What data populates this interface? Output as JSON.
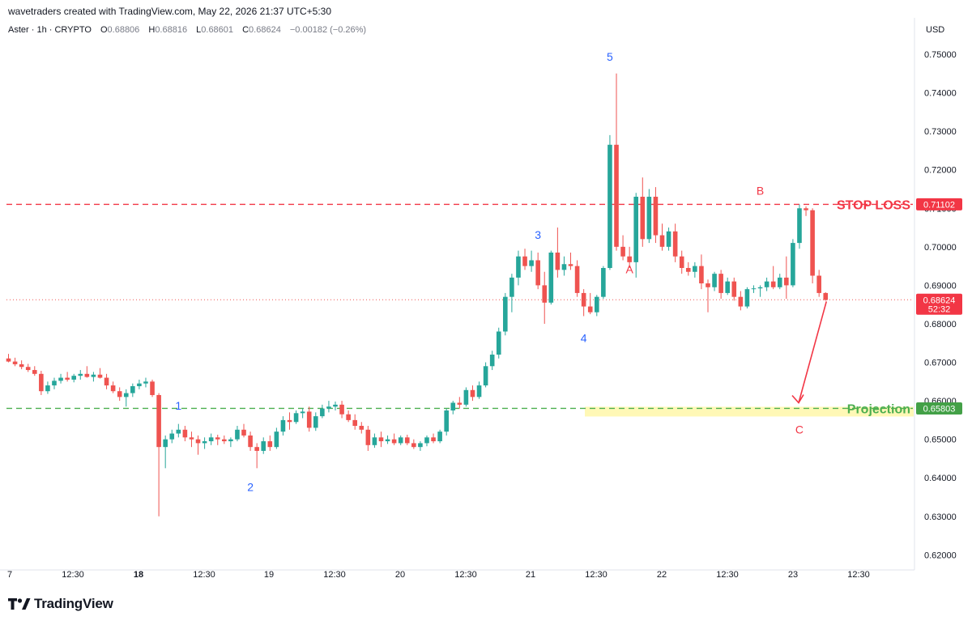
{
  "header": {
    "credit": "wavetraders created with TradingView.com, May 22, 2026 21:37 UTC+5:30",
    "symbol": "Aster · 1h · CRYPTO",
    "ohlc": {
      "o_label": "O",
      "o": "0.68806",
      "h_label": "H",
      "h": "0.68816",
      "l_label": "L",
      "l": "0.68601",
      "c_label": "C",
      "c": "0.68624",
      "change": "−0.00182 (−0.26%)"
    },
    "currency": "USD"
  },
  "brand": {
    "name": "TradingView",
    "logo": "tradingview-logo-icon"
  },
  "colors": {
    "up": "#26a69a",
    "down": "#ef5350",
    "stop": "#f23645",
    "projection": "#4caf50",
    "wave_blue": "#2962ff",
    "wave_red": "#f23645",
    "highlight": "#fff59d"
  },
  "chart_data": {
    "type": "candlestick",
    "ylim": [
      0.62,
      0.75
    ],
    "y_ticks": [
      "0.75000",
      "0.74000",
      "0.73000",
      "0.72000",
      "0.71000",
      "0.70000",
      "0.69000",
      "0.68000",
      "0.67000",
      "0.66000",
      "0.65000",
      "0.64000",
      "0.63000",
      "0.62000"
    ],
    "x_ticks": [
      "7",
      "12:30",
      "18",
      "12:30",
      "19",
      "12:30",
      "20",
      "12:30",
      "21",
      "12:30",
      "22",
      "12:30",
      "23",
      "12:30"
    ],
    "levels": [
      {
        "name": "STOP LOSS",
        "label": "STOP LOSS",
        "value": 0.71102,
        "value_label": "0.71102",
        "style": "dashed",
        "color": "#f23645"
      },
      {
        "name": "Projection",
        "label": "Projection",
        "value": 0.65803,
        "value_label": "0.65803",
        "style": "dashed",
        "color": "#4caf50"
      }
    ],
    "last_price": {
      "value": 0.68624,
      "value_label": "0.68624",
      "countdown": "52:32"
    },
    "wave_labels": [
      {
        "text": "1",
        "color": "blue"
      },
      {
        "text": "2",
        "color": "blue"
      },
      {
        "text": "3",
        "color": "blue"
      },
      {
        "text": "4",
        "color": "blue"
      },
      {
        "text": "5",
        "color": "blue"
      },
      {
        "text": "A",
        "color": "red"
      },
      {
        "text": "B",
        "color": "red"
      },
      {
        "text": "C",
        "color": "red"
      }
    ],
    "candles": [
      {
        "o": 0.671,
        "h": 0.6722,
        "l": 0.67,
        "c": 0.6702
      },
      {
        "o": 0.6702,
        "h": 0.6712,
        "l": 0.669,
        "c": 0.6695
      },
      {
        "o": 0.6695,
        "h": 0.6705,
        "l": 0.6682,
        "c": 0.6688
      },
      {
        "o": 0.6688,
        "h": 0.6696,
        "l": 0.6675,
        "c": 0.668
      },
      {
        "o": 0.668,
        "h": 0.669,
        "l": 0.6665,
        "c": 0.667
      },
      {
        "o": 0.667,
        "h": 0.6678,
        "l": 0.6615,
        "c": 0.6625
      },
      {
        "o": 0.6625,
        "h": 0.665,
        "l": 0.6618,
        "c": 0.664
      },
      {
        "o": 0.664,
        "h": 0.666,
        "l": 0.663,
        "c": 0.6652
      },
      {
        "o": 0.6652,
        "h": 0.667,
        "l": 0.6645,
        "c": 0.666
      },
      {
        "o": 0.666,
        "h": 0.6675,
        "l": 0.665,
        "c": 0.6655
      },
      {
        "o": 0.6655,
        "h": 0.667,
        "l": 0.6648,
        "c": 0.6665
      },
      {
        "o": 0.6665,
        "h": 0.668,
        "l": 0.6655,
        "c": 0.667
      },
      {
        "o": 0.667,
        "h": 0.669,
        "l": 0.666,
        "c": 0.6662
      },
      {
        "o": 0.6662,
        "h": 0.6675,
        "l": 0.665,
        "c": 0.6668
      },
      {
        "o": 0.6668,
        "h": 0.6685,
        "l": 0.6658,
        "c": 0.666
      },
      {
        "o": 0.666,
        "h": 0.667,
        "l": 0.663,
        "c": 0.664
      },
      {
        "o": 0.664,
        "h": 0.665,
        "l": 0.662,
        "c": 0.6625
      },
      {
        "o": 0.6625,
        "h": 0.6635,
        "l": 0.66,
        "c": 0.661
      },
      {
        "o": 0.661,
        "h": 0.663,
        "l": 0.6585,
        "c": 0.662
      },
      {
        "o": 0.662,
        "h": 0.6645,
        "l": 0.661,
        "c": 0.6638
      },
      {
        "o": 0.6638,
        "h": 0.6655,
        "l": 0.663,
        "c": 0.6645
      },
      {
        "o": 0.6645,
        "h": 0.666,
        "l": 0.6635,
        "c": 0.665
      },
      {
        "o": 0.665,
        "h": 0.6655,
        "l": 0.661,
        "c": 0.6615
      },
      {
        "o": 0.6615,
        "h": 0.662,
        "l": 0.63,
        "c": 0.648
      },
      {
        "o": 0.648,
        "h": 0.651,
        "l": 0.6425,
        "c": 0.65
      },
      {
        "o": 0.65,
        "h": 0.6525,
        "l": 0.649,
        "c": 0.6515
      },
      {
        "o": 0.6515,
        "h": 0.654,
        "l": 0.6505,
        "c": 0.6525
      },
      {
        "o": 0.6525,
        "h": 0.6535,
        "l": 0.6495,
        "c": 0.6505
      },
      {
        "o": 0.6505,
        "h": 0.652,
        "l": 0.648,
        "c": 0.65
      },
      {
        "o": 0.65,
        "h": 0.651,
        "l": 0.646,
        "c": 0.649
      },
      {
        "o": 0.649,
        "h": 0.6505,
        "l": 0.6475,
        "c": 0.6495
      },
      {
        "o": 0.6495,
        "h": 0.6515,
        "l": 0.6485,
        "c": 0.6505
      },
      {
        "o": 0.6505,
        "h": 0.6512,
        "l": 0.6485,
        "c": 0.65
      },
      {
        "o": 0.65,
        "h": 0.651,
        "l": 0.6488,
        "c": 0.6495
      },
      {
        "o": 0.6495,
        "h": 0.6505,
        "l": 0.648,
        "c": 0.65
      },
      {
        "o": 0.65,
        "h": 0.6535,
        "l": 0.6495,
        "c": 0.6525
      },
      {
        "o": 0.6525,
        "h": 0.654,
        "l": 0.6505,
        "c": 0.651
      },
      {
        "o": 0.651,
        "h": 0.652,
        "l": 0.647,
        "c": 0.648
      },
      {
        "o": 0.648,
        "h": 0.649,
        "l": 0.6425,
        "c": 0.647
      },
      {
        "o": 0.647,
        "h": 0.6505,
        "l": 0.6462,
        "c": 0.6495
      },
      {
        "o": 0.6495,
        "h": 0.651,
        "l": 0.647,
        "c": 0.648
      },
      {
        "o": 0.648,
        "h": 0.653,
        "l": 0.6475,
        "c": 0.652
      },
      {
        "o": 0.652,
        "h": 0.656,
        "l": 0.651,
        "c": 0.655
      },
      {
        "o": 0.655,
        "h": 0.657,
        "l": 0.6525,
        "c": 0.6545
      },
      {
        "o": 0.6545,
        "h": 0.6575,
        "l": 0.654,
        "c": 0.6568
      },
      {
        "o": 0.6568,
        "h": 0.658,
        "l": 0.6555,
        "c": 0.6572
      },
      {
        "o": 0.6572,
        "h": 0.6585,
        "l": 0.652,
        "c": 0.653
      },
      {
        "o": 0.653,
        "h": 0.657,
        "l": 0.6522,
        "c": 0.656
      },
      {
        "o": 0.656,
        "h": 0.659,
        "l": 0.6555,
        "c": 0.658
      },
      {
        "o": 0.658,
        "h": 0.66,
        "l": 0.657,
        "c": 0.6585
      },
      {
        "o": 0.6585,
        "h": 0.6598,
        "l": 0.6575,
        "c": 0.659
      },
      {
        "o": 0.659,
        "h": 0.66,
        "l": 0.6555,
        "c": 0.6565
      },
      {
        "o": 0.6565,
        "h": 0.6575,
        "l": 0.6545,
        "c": 0.655
      },
      {
        "o": 0.655,
        "h": 0.6565,
        "l": 0.6525,
        "c": 0.6535
      },
      {
        "o": 0.6535,
        "h": 0.6545,
        "l": 0.6515,
        "c": 0.6525
      },
      {
        "o": 0.6525,
        "h": 0.6535,
        "l": 0.647,
        "c": 0.6485
      },
      {
        "o": 0.6485,
        "h": 0.6515,
        "l": 0.6478,
        "c": 0.6505
      },
      {
        "o": 0.6505,
        "h": 0.652,
        "l": 0.648,
        "c": 0.6495
      },
      {
        "o": 0.6495,
        "h": 0.651,
        "l": 0.6488,
        "c": 0.65
      },
      {
        "o": 0.65,
        "h": 0.6515,
        "l": 0.6485,
        "c": 0.649
      },
      {
        "o": 0.649,
        "h": 0.651,
        "l": 0.6485,
        "c": 0.6505
      },
      {
        "o": 0.6505,
        "h": 0.6512,
        "l": 0.6485,
        "c": 0.649
      },
      {
        "o": 0.649,
        "h": 0.65,
        "l": 0.6475,
        "c": 0.648
      },
      {
        "o": 0.648,
        "h": 0.6495,
        "l": 0.647,
        "c": 0.649
      },
      {
        "o": 0.649,
        "h": 0.651,
        "l": 0.6482,
        "c": 0.6505
      },
      {
        "o": 0.6505,
        "h": 0.6515,
        "l": 0.649,
        "c": 0.6495
      },
      {
        "o": 0.6495,
        "h": 0.6525,
        "l": 0.649,
        "c": 0.652
      },
      {
        "o": 0.652,
        "h": 0.658,
        "l": 0.651,
        "c": 0.6575
      },
      {
        "o": 0.6575,
        "h": 0.66,
        "l": 0.6565,
        "c": 0.6595
      },
      {
        "o": 0.6595,
        "h": 0.661,
        "l": 0.658,
        "c": 0.659
      },
      {
        "o": 0.659,
        "h": 0.6635,
        "l": 0.6585,
        "c": 0.6628
      },
      {
        "o": 0.6628,
        "h": 0.664,
        "l": 0.66,
        "c": 0.661
      },
      {
        "o": 0.661,
        "h": 0.665,
        "l": 0.6605,
        "c": 0.664
      },
      {
        "o": 0.664,
        "h": 0.67,
        "l": 0.6635,
        "c": 0.669
      },
      {
        "o": 0.669,
        "h": 0.673,
        "l": 0.668,
        "c": 0.672
      },
      {
        "o": 0.672,
        "h": 0.679,
        "l": 0.671,
        "c": 0.678
      },
      {
        "o": 0.678,
        "h": 0.688,
        "l": 0.677,
        "c": 0.687
      },
      {
        "o": 0.687,
        "h": 0.693,
        "l": 0.683,
        "c": 0.692
      },
      {
        "o": 0.692,
        "h": 0.699,
        "l": 0.69,
        "c": 0.6975
      },
      {
        "o": 0.6975,
        "h": 0.6995,
        "l": 0.694,
        "c": 0.695
      },
      {
        "o": 0.695,
        "h": 0.699,
        "l": 0.6935,
        "c": 0.6965
      },
      {
        "o": 0.6965,
        "h": 0.6985,
        "l": 0.689,
        "c": 0.69
      },
      {
        "o": 0.69,
        "h": 0.6935,
        "l": 0.68,
        "c": 0.6855
      },
      {
        "o": 0.6855,
        "h": 0.699,
        "l": 0.685,
        "c": 0.6985
      },
      {
        "o": 0.6985,
        "h": 0.705,
        "l": 0.692,
        "c": 0.694
      },
      {
        "o": 0.694,
        "h": 0.6975,
        "l": 0.6925,
        "c": 0.6955
      },
      {
        "o": 0.6955,
        "h": 0.6985,
        "l": 0.694,
        "c": 0.695
      },
      {
        "o": 0.695,
        "h": 0.6965,
        "l": 0.687,
        "c": 0.688
      },
      {
        "o": 0.688,
        "h": 0.689,
        "l": 0.682,
        "c": 0.6845
      },
      {
        "o": 0.6845,
        "h": 0.688,
        "l": 0.6825,
        "c": 0.683
      },
      {
        "o": 0.683,
        "h": 0.6875,
        "l": 0.682,
        "c": 0.687
      },
      {
        "o": 0.687,
        "h": 0.695,
        "l": 0.6865,
        "c": 0.6945
      },
      {
        "o": 0.6945,
        "h": 0.729,
        "l": 0.694,
        "c": 0.7265
      },
      {
        "o": 0.7265,
        "h": 0.745,
        "l": 0.699,
        "c": 0.7
      },
      {
        "o": 0.7,
        "h": 0.703,
        "l": 0.6965,
        "c": 0.6975
      },
      {
        "o": 0.6975,
        "h": 0.7,
        "l": 0.6945,
        "c": 0.696
      },
      {
        "o": 0.696,
        "h": 0.714,
        "l": 0.692,
        "c": 0.713
      },
      {
        "o": 0.713,
        "h": 0.718,
        "l": 0.7,
        "c": 0.702
      },
      {
        "o": 0.702,
        "h": 0.715,
        "l": 0.701,
        "c": 0.713
      },
      {
        "o": 0.713,
        "h": 0.7155,
        "l": 0.701,
        "c": 0.703
      },
      {
        "o": 0.703,
        "h": 0.706,
        "l": 0.699,
        "c": 0.7
      },
      {
        "o": 0.7,
        "h": 0.705,
        "l": 0.699,
        "c": 0.704
      },
      {
        "o": 0.704,
        "h": 0.706,
        "l": 0.696,
        "c": 0.6975
      },
      {
        "o": 0.6975,
        "h": 0.699,
        "l": 0.693,
        "c": 0.6945
      },
      {
        "o": 0.6945,
        "h": 0.696,
        "l": 0.6925,
        "c": 0.6935
      },
      {
        "o": 0.6935,
        "h": 0.696,
        "l": 0.692,
        "c": 0.695
      },
      {
        "o": 0.695,
        "h": 0.698,
        "l": 0.689,
        "c": 0.6905
      },
      {
        "o": 0.6905,
        "h": 0.6915,
        "l": 0.683,
        "c": 0.6895
      },
      {
        "o": 0.6895,
        "h": 0.6935,
        "l": 0.6885,
        "c": 0.693
      },
      {
        "o": 0.693,
        "h": 0.694,
        "l": 0.6865,
        "c": 0.688
      },
      {
        "o": 0.688,
        "h": 0.692,
        "l": 0.6875,
        "c": 0.691
      },
      {
        "o": 0.691,
        "h": 0.692,
        "l": 0.686,
        "c": 0.687
      },
      {
        "o": 0.687,
        "h": 0.6885,
        "l": 0.6835,
        "c": 0.6845
      },
      {
        "o": 0.6845,
        "h": 0.6895,
        "l": 0.684,
        "c": 0.689
      },
      {
        "o": 0.689,
        "h": 0.69,
        "l": 0.688,
        "c": 0.6892
      },
      {
        "o": 0.6892,
        "h": 0.69,
        "l": 0.687,
        "c": 0.6895
      },
      {
        "o": 0.6895,
        "h": 0.692,
        "l": 0.6885,
        "c": 0.691
      },
      {
        "o": 0.691,
        "h": 0.695,
        "l": 0.689,
        "c": 0.6895
      },
      {
        "o": 0.6895,
        "h": 0.693,
        "l": 0.689,
        "c": 0.692
      },
      {
        "o": 0.692,
        "h": 0.6975,
        "l": 0.6865,
        "c": 0.69
      },
      {
        "o": 0.69,
        "h": 0.702,
        "l": 0.6895,
        "c": 0.701
      },
      {
        "o": 0.701,
        "h": 0.711,
        "l": 0.6995,
        "c": 0.71
      },
      {
        "o": 0.71,
        "h": 0.7105,
        "l": 0.708,
        "c": 0.7095
      },
      {
        "o": 0.7095,
        "h": 0.71,
        "l": 0.6905,
        "c": 0.6925
      },
      {
        "o": 0.6925,
        "h": 0.694,
        "l": 0.687,
        "c": 0.688
      },
      {
        "o": 0.688,
        "h": 0.6882,
        "l": 0.686,
        "c": 0.6862
      }
    ]
  }
}
